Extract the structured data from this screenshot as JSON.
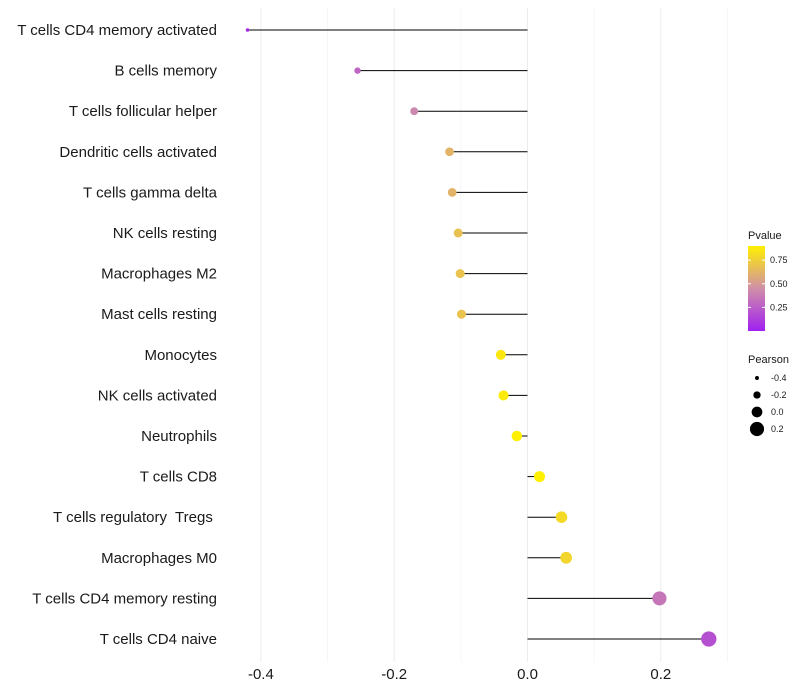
{
  "chart_data": {
    "type": "lollipop",
    "orientation": "horizontal",
    "categories": [
      "T cells CD4 memory activated",
      "B cells memory",
      "T cells follicular helper",
      "Dendritic cells activated",
      "T cells gamma delta",
      "NK cells resting",
      "Macrophages M2",
      "Mast cells resting",
      "Monocytes",
      "NK cells activated",
      "Neutrophils",
      "T cells CD8",
      "T cells regulatory  Tregs ",
      "Macrophages M0",
      "T cells CD4 memory resting",
      "T cells CD4 naive"
    ],
    "pearson": [
      -0.42,
      -0.255,
      -0.17,
      -0.117,
      -0.113,
      -0.104,
      -0.101,
      -0.099,
      -0.04,
      -0.036,
      -0.016,
      0.018,
      0.051,
      0.058,
      0.198,
      0.272
    ],
    "pvalue": [
      0.03,
      0.28,
      0.42,
      0.62,
      0.62,
      0.68,
      0.69,
      0.69,
      0.86,
      0.87,
      0.95,
      0.93,
      0.8,
      0.78,
      0.35,
      0.2
    ],
    "xlim": [
      -0.45,
      0.3
    ],
    "x_ticks": [
      -0.4,
      -0.2,
      0.0,
      0.2
    ],
    "x_tick_labels": [
      "-0.4",
      "-0.2",
      "0.0",
      "0.2"
    ],
    "grid": true,
    "legend_position": "right",
    "color_legend": {
      "title": "Pvalue",
      "range": [
        0.0,
        0.9
      ],
      "ticks": [
        0.25,
        0.5,
        0.75
      ],
      "tick_labels": [
        "0.25",
        "0.50",
        "0.75"
      ],
      "low_color": "#a020f0",
      "mid_color": "#d08fa8",
      "high_color": "#fff000"
    },
    "size_legend": {
      "title": "Pearson",
      "values": [
        -0.4,
        -0.2,
        0.0,
        0.2
      ],
      "labels": [
        "-0.4",
        "-0.2",
        "0.0",
        "0.2"
      ]
    },
    "stem_color": "#000000"
  }
}
